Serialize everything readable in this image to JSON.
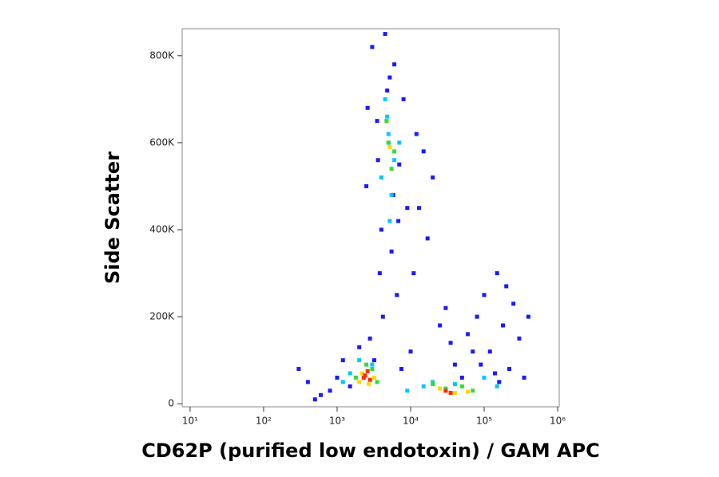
{
  "chart_data": {
    "type": "scatter",
    "xlabel": "CD62P (purified low endotoxin) / GAM APC",
    "ylabel": "Side Scatter",
    "xscale": "log",
    "xlim": [
      7.8,
      1050000
    ],
    "xticks": [
      {
        "value": 10,
        "label": "10¹"
      },
      {
        "value": 100,
        "label": "10²"
      },
      {
        "value": 1000,
        "label": "10³"
      },
      {
        "value": 10000,
        "label": "10⁴"
      },
      {
        "value": 100000,
        "label": "10⁵"
      },
      {
        "value": 1000000,
        "label": "10⁶"
      }
    ],
    "ylim": [
      -7000,
      862000
    ],
    "yticks": [
      0,
      {
        "value": 200000,
        "label": "200K"
      },
      {
        "value": 400000,
        "label": "400K"
      },
      {
        "value": 600000,
        "label": "600K"
      },
      {
        "value": 800000,
        "label": "800K"
      }
    ],
    "grid": false,
    "series": [
      {
        "color": "#1a1aff",
        "x": [
          3000,
          4500,
          6000,
          8000,
          3500,
          5000,
          7000,
          2500,
          9000,
          4000,
          12000,
          15000,
          20000,
          5500,
          3800,
          6500,
          4200,
          2800,
          10000,
          25000,
          30000,
          3200,
          7500,
          5200,
          60000,
          80000,
          100000,
          150000,
          200000,
          250000,
          120000,
          180000,
          300000,
          400000,
          90000,
          140000,
          220000,
          160000,
          350000,
          70000,
          1500,
          1000,
          800,
          600,
          1200,
          2000,
          400,
          500,
          300,
          40000,
          50000,
          13000,
          17000,
          35000,
          11000,
          4800,
          5800,
          6800,
          3600,
          2600
        ],
        "values": [
          820000,
          850000,
          780000,
          700000,
          650000,
          600000,
          550000,
          500000,
          450000,
          400000,
          620000,
          580000,
          520000,
          350000,
          300000,
          250000,
          200000,
          150000,
          120000,
          180000,
          220000,
          100000,
          80000,
          750000,
          160000,
          200000,
          250000,
          300000,
          270000,
          230000,
          120000,
          180000,
          150000,
          200000,
          90000,
          70000,
          80000,
          50000,
          60000,
          120000,
          40000,
          60000,
          30000,
          20000,
          100000,
          130000,
          50000,
          10000,
          80000,
          90000,
          60000,
          450000,
          380000,
          140000,
          300000,
          720000,
          480000,
          420000,
          560000,
          680000
        ]
      },
      {
        "color": "#00c8ff",
        "x": [
          4500,
          5000,
          6000,
          5500,
          4000,
          7000,
          3000,
          1500,
          2000,
          1200,
          15000,
          20000,
          40000,
          100000,
          150000,
          9000,
          5200,
          4800
        ],
        "values": [
          700000,
          620000,
          560000,
          480000,
          520000,
          600000,
          90000,
          70000,
          100000,
          50000,
          40000,
          50000,
          45000,
          60000,
          40000,
          30000,
          420000,
          660000
        ]
      },
      {
        "color": "#33dd33",
        "x": [
          5000,
          5500,
          4700,
          6000,
          1800,
          3000,
          3500,
          2500,
          30000,
          50000,
          70000,
          20000
        ],
        "values": [
          600000,
          540000,
          650000,
          580000,
          60000,
          80000,
          50000,
          90000,
          35000,
          40000,
          30000,
          45000
        ]
      },
      {
        "color": "#ffd700",
        "x": [
          2200,
          3200,
          2700,
          40000,
          25000,
          60000,
          5200,
          2000
        ],
        "values": [
          70000,
          60000,
          45000,
          25000,
          35000,
          28000,
          590000,
          50000
        ]
      },
      {
        "color": "#ff2a00",
        "x": [
          2400,
          2800,
          2600,
          30000,
          35000,
          2300
        ],
        "values": [
          65000,
          55000,
          75000,
          30000,
          25000,
          60000
        ]
      }
    ]
  }
}
